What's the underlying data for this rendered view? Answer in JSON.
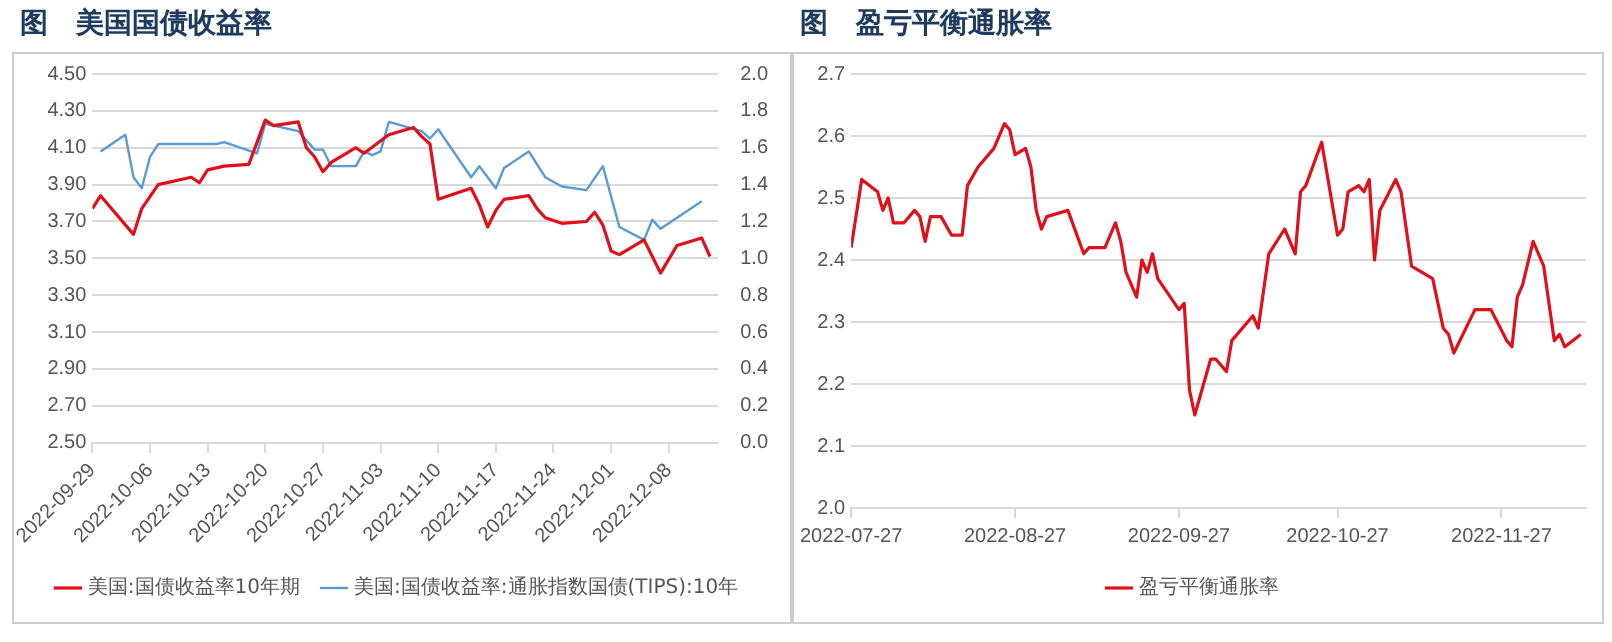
{
  "chart_data": [
    {
      "type": "line",
      "title": "图　美国国债收益率",
      "legend": "bottom",
      "grid": "y",
      "marker": "none",
      "line_style": "solid",
      "xlim": [
        "2022-09-29",
        "2022-12-14"
      ],
      "xticks": [
        "2022-09-29",
        "2022-10-06",
        "2022-10-13",
        "2022-10-20",
        "2022-10-27",
        "2022-11-03",
        "2022-11-10",
        "2022-11-17",
        "2022-11-24",
        "2022-12-01",
        "2022-12-08"
      ],
      "ylim": [
        2.5,
        4.5
      ],
      "yticks": [
        {
          "value": 2.5,
          "label": "2.50"
        },
        {
          "value": 2.7,
          "label": "2.70"
        },
        {
          "value": 2.9,
          "label": "2.90"
        },
        {
          "value": 3.1,
          "label": "3.10"
        },
        {
          "value": 3.3,
          "label": "3.30"
        },
        {
          "value": 3.5,
          "label": "3.50"
        },
        {
          "value": 3.7,
          "label": "3.70"
        },
        {
          "value": 3.9,
          "label": "3.90"
        },
        {
          "value": 4.1,
          "label": "4.10"
        },
        {
          "value": 4.3,
          "label": "4.30"
        },
        {
          "value": 4.5,
          "label": "4.50"
        }
      ],
      "y2lim": [
        0,
        2
      ],
      "y2ticks": [
        {
          "value": 0,
          "label": "0.0"
        },
        0.2,
        0.4,
        0.6,
        0.8,
        {
          "value": 1,
          "label": "1.0"
        },
        1.2,
        1.4,
        1.6,
        1.8,
        {
          "value": 2,
          "label": "2.0"
        }
      ],
      "series": [
        {
          "name": "美国:国债收益率10年期",
          "color": "#e0101a",
          "x": [
            "2022-09-29",
            "2022-09-30",
            "2022-10-04",
            "2022-10-05",
            "2022-10-07",
            "2022-10-11",
            "2022-10-12",
            "2022-10-13",
            "2022-10-15",
            "2022-10-18",
            "2022-10-20",
            "2022-10-21",
            "2022-10-24",
            "2022-10-25",
            "2022-10-26",
            "2022-10-27",
            "2022-10-28",
            "2022-10-31",
            "2022-11-01",
            "2022-11-04",
            "2022-11-07",
            "2022-11-08",
            "2022-11-09",
            "2022-11-10",
            "2022-11-14",
            "2022-11-15",
            "2022-11-16",
            "2022-11-17",
            "2022-11-18",
            "2022-11-21",
            "2022-11-22",
            "2022-11-23",
            "2022-11-25",
            "2022-11-28",
            "2022-11-29",
            "2022-11-30",
            "2022-12-01",
            "2022-12-02",
            "2022-12-05",
            "2022-12-07",
            "2022-12-09",
            "2022-12-12",
            "2022-12-13"
          ],
          "values": [
            3.77,
            3.84,
            3.63,
            3.77,
            3.9,
            3.94,
            3.91,
            3.98,
            4.0,
            4.01,
            4.25,
            4.22,
            4.24,
            4.1,
            4.05,
            3.97,
            4.02,
            4.1,
            4.07,
            4.17,
            4.21,
            4.16,
            4.12,
            3.82,
            3.88,
            3.79,
            3.67,
            3.76,
            3.82,
            3.84,
            3.77,
            3.72,
            3.69,
            3.7,
            3.75,
            3.68,
            3.54,
            3.52,
            3.6,
            3.42,
            3.57,
            3.61,
            3.51
          ]
        },
        {
          "name": "美国:国债收益率:通胀指数国债(TIPS):10年",
          "color": "#5b9bd5",
          "axis": "y2",
          "x": [
            "2022-09-30",
            "2022-10-03",
            "2022-10-04",
            "2022-10-05",
            "2022-10-06",
            "2022-10-07",
            "2022-10-14",
            "2022-10-15",
            "2022-10-19",
            "2022-10-20",
            "2022-10-24",
            "2022-10-26",
            "2022-10-27",
            "2022-10-28",
            "2022-10-31",
            "2022-11-01",
            "2022-11-02",
            "2022-11-03",
            "2022-11-04",
            "2022-11-08",
            "2022-11-09",
            "2022-11-10",
            "2022-11-14",
            "2022-11-15",
            "2022-11-17",
            "2022-11-18",
            "2022-11-21",
            "2022-11-23",
            "2022-11-25",
            "2022-11-28",
            "2022-11-30",
            "2022-12-02",
            "2022-12-05",
            "2022-12-06",
            "2022-12-07",
            "2022-12-12"
          ],
          "values": [
            1.58,
            1.67,
            1.44,
            1.38,
            1.55,
            1.62,
            1.62,
            1.63,
            1.57,
            1.73,
            1.69,
            1.59,
            1.59,
            1.5,
            1.5,
            1.58,
            1.56,
            1.58,
            1.74,
            1.69,
            1.65,
            1.7,
            1.44,
            1.5,
            1.38,
            1.49,
            1.58,
            1.44,
            1.39,
            1.37,
            1.5,
            1.17,
            1.1,
            1.21,
            1.16,
            1.31
          ]
        }
      ]
    },
    {
      "type": "line",
      "title": "图　盈亏平衡通胀率",
      "legend": "bottom",
      "grid": "y",
      "marker": "none",
      "line_style": "solid",
      "xlim": [
        "2022-07-27",
        "2022-12-13"
      ],
      "xticks": [
        "2022-07-27",
        "2022-08-27",
        "2022-09-27",
        "2022-10-27",
        "2022-11-27"
      ],
      "ylim": [
        2.0,
        2.7
      ],
      "yticks": [
        {
          "value": 2.0,
          "label": "2.0"
        },
        2.1,
        2.2,
        2.3,
        2.4,
        2.5,
        2.6,
        2.7
      ],
      "series": [
        {
          "name": "盈亏平衡通胀率",
          "color": "#e0101a",
          "x": [
            "2022-07-27",
            "2022-07-29",
            "2022-08-01",
            "2022-08-02",
            "2022-08-03",
            "2022-08-04",
            "2022-08-06",
            "2022-08-08",
            "2022-08-09",
            "2022-08-10",
            "2022-08-11",
            "2022-08-13",
            "2022-08-15",
            "2022-08-17",
            "2022-08-18",
            "2022-08-20",
            "2022-08-23",
            "2022-08-25",
            "2022-08-26",
            "2022-08-27",
            "2022-08-29",
            "2022-08-30",
            "2022-08-31",
            "2022-09-01",
            "2022-09-02",
            "2022-09-06",
            "2022-09-09",
            "2022-09-10",
            "2022-09-13",
            "2022-09-15",
            "2022-09-16",
            "2022-09-17",
            "2022-09-19",
            "2022-09-20",
            "2022-09-21",
            "2022-09-22",
            "2022-09-23",
            "2022-09-27",
            "2022-09-28",
            "2022-09-29",
            "2022-09-30",
            "2022-10-03",
            "2022-10-04",
            "2022-10-06",
            "2022-10-07",
            "2022-10-11",
            "2022-10-12",
            "2022-10-14",
            "2022-10-17",
            "2022-10-19",
            "2022-10-20",
            "2022-10-21",
            "2022-10-24",
            "2022-10-27",
            "2022-10-28",
            "2022-10-29",
            "2022-10-31",
            "2022-11-01",
            "2022-11-02",
            "2022-11-03",
            "2022-11-04",
            "2022-11-07",
            "2022-11-08",
            "2022-11-10",
            "2022-11-14",
            "2022-11-16",
            "2022-11-17",
            "2022-11-18",
            "2022-11-22",
            "2022-11-25",
            "2022-11-28",
            "2022-11-29",
            "2022-11-30",
            "2022-12-01",
            "2022-12-03",
            "2022-12-05",
            "2022-12-07",
            "2022-12-08",
            "2022-12-09",
            "2022-12-12"
          ],
          "values": [
            2.42,
            2.53,
            2.51,
            2.48,
            2.5,
            2.46,
            2.46,
            2.48,
            2.47,
            2.43,
            2.47,
            2.47,
            2.44,
            2.44,
            2.52,
            2.55,
            2.58,
            2.62,
            2.61,
            2.57,
            2.58,
            2.55,
            2.48,
            2.45,
            2.47,
            2.48,
            2.41,
            2.42,
            2.42,
            2.46,
            2.43,
            2.38,
            2.34,
            2.4,
            2.38,
            2.41,
            2.37,
            2.32,
            2.33,
            2.19,
            2.15,
            2.24,
            2.24,
            2.22,
            2.27,
            2.31,
            2.29,
            2.41,
            2.45,
            2.41,
            2.51,
            2.52,
            2.59,
            2.44,
            2.45,
            2.51,
            2.52,
            2.51,
            2.53,
            2.4,
            2.48,
            2.53,
            2.51,
            2.39,
            2.37,
            2.29,
            2.28,
            2.25,
            2.32,
            2.32,
            2.27,
            2.26,
            2.34,
            2.36,
            2.43,
            2.39,
            2.27,
            2.28,
            2.26,
            2.28
          ]
        }
      ]
    }
  ]
}
